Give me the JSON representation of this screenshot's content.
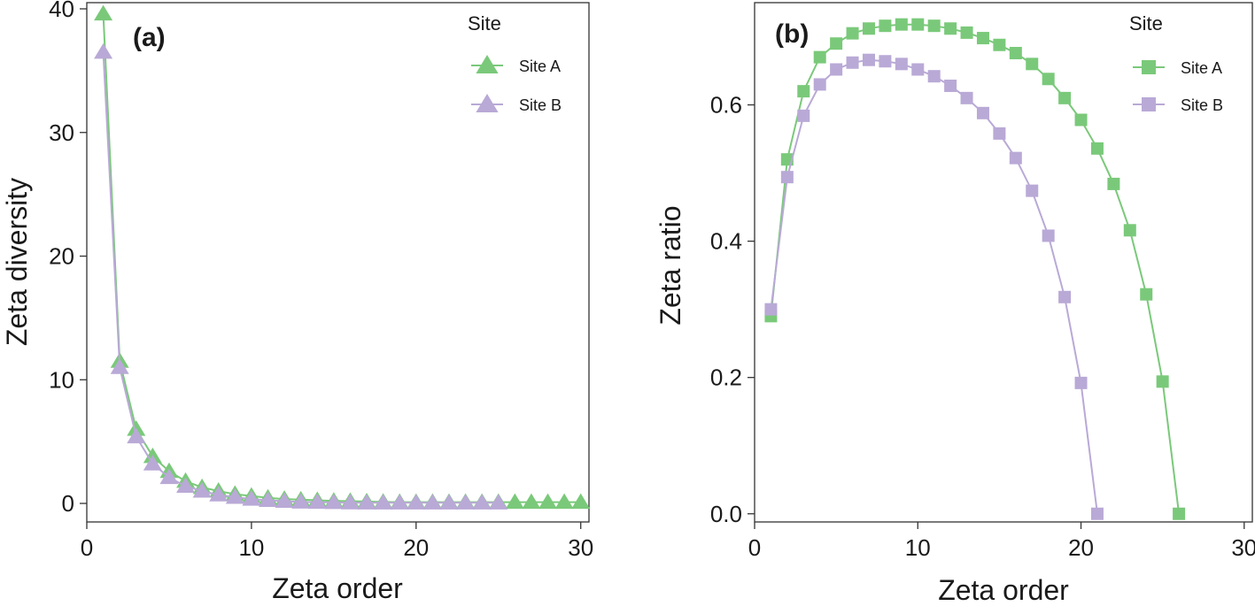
{
  "chart_data": [
    {
      "type": "line",
      "panel_label": "(a)",
      "xlabel": "Zeta order",
      "ylabel": "Zeta diversity",
      "xlim": [
        0,
        30.5
      ],
      "ylim": [
        -1.5,
        40.5
      ],
      "xticks": [
        0,
        10,
        20,
        30
      ],
      "yticks": [
        0,
        10,
        20,
        30,
        40
      ],
      "marker": "triangle",
      "legend": {
        "title": "Site",
        "position": "top-right"
      },
      "series": [
        {
          "name": "Site A",
          "color": "#7ac97a",
          "x": [
            1,
            2,
            3,
            4,
            5,
            6,
            7,
            8,
            9,
            10,
            11,
            12,
            13,
            14,
            15,
            16,
            17,
            18,
            19,
            20,
            21,
            22,
            23,
            24,
            25,
            26,
            27,
            28,
            29,
            30
          ],
          "y": [
            39.6,
            11.5,
            6.0,
            3.8,
            2.6,
            1.8,
            1.3,
            1.0,
            0.75,
            0.6,
            0.45,
            0.35,
            0.3,
            0.25,
            0.2,
            0.18,
            0.15,
            0.12,
            0.1,
            0.1,
            0.1,
            0.1,
            0.1,
            0.1,
            0.1,
            0.1,
            0.1,
            0.1,
            0.1,
            0.1
          ]
        },
        {
          "name": "Site B",
          "color": "#b9a9d6",
          "x": [
            1,
            2,
            3,
            4,
            5,
            6,
            7,
            8,
            9,
            10,
            11,
            12,
            13,
            14,
            15,
            16,
            17,
            18,
            19,
            20,
            21,
            22,
            23,
            24,
            25
          ],
          "y": [
            36.5,
            11.0,
            5.4,
            3.2,
            2.1,
            1.4,
            1.0,
            0.7,
            0.5,
            0.35,
            0.25,
            0.18,
            0.12,
            0.1,
            0.08,
            0.06,
            0.05,
            0.05,
            0.05,
            0.05,
            0.05,
            0.05,
            0.05,
            0.05,
            0.05
          ]
        }
      ]
    },
    {
      "type": "line",
      "panel_label": "(b)",
      "xlabel": "Zeta order",
      "ylabel": "Zeta ratio",
      "xlim": [
        0,
        30.5
      ],
      "ylim": [
        -0.012,
        0.75
      ],
      "xticks": [
        0,
        10,
        20,
        30
      ],
      "yticks": [
        0.0,
        0.2,
        0.4,
        0.6
      ],
      "ytick_labels": [
        "0.0",
        "0.2",
        "0.4",
        "0.6"
      ],
      "marker": "square",
      "legend": {
        "title": "Site",
        "position": "top-right"
      },
      "series": [
        {
          "name": "Site A",
          "color": "#7ac97a",
          "x": [
            1,
            2,
            3,
            4,
            5,
            6,
            7,
            8,
            9,
            10,
            11,
            12,
            13,
            14,
            15,
            16,
            17,
            18,
            19,
            20,
            21,
            22,
            23,
            24,
            25,
            26
          ],
          "y": [
            0.29,
            0.52,
            0.62,
            0.67,
            0.69,
            0.705,
            0.712,
            0.716,
            0.718,
            0.718,
            0.716,
            0.712,
            0.706,
            0.698,
            0.688,
            0.676,
            0.66,
            0.638,
            0.61,
            0.578,
            0.536,
            0.484,
            0.416,
            0.322,
            0.194,
            0.0
          ]
        },
        {
          "name": "Site B",
          "color": "#b9a9d6",
          "x": [
            1,
            2,
            3,
            4,
            5,
            6,
            7,
            8,
            9,
            10,
            11,
            12,
            13,
            14,
            15,
            16,
            17,
            18,
            19,
            20,
            21
          ],
          "y": [
            0.3,
            0.494,
            0.584,
            0.63,
            0.652,
            0.662,
            0.666,
            0.664,
            0.66,
            0.652,
            0.642,
            0.628,
            0.61,
            0.588,
            0.558,
            0.522,
            0.474,
            0.408,
            0.318,
            0.192,
            0.0
          ]
        }
      ]
    }
  ]
}
